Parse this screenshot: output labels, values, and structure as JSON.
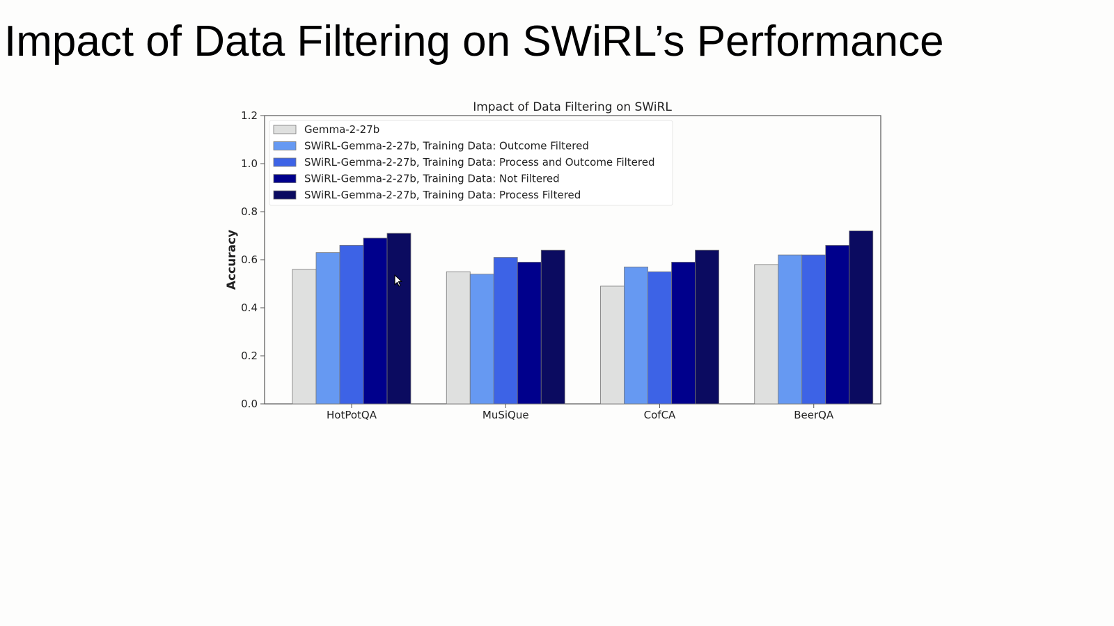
{
  "slide": {
    "title": "Impact of Data Filtering on SWiRL’s Performance"
  },
  "chart_data": {
    "type": "bar",
    "title": "Impact of Data Filtering on SWiRL",
    "xlabel": "",
    "ylabel": "Accuracy",
    "ylim": [
      0,
      1.2
    ],
    "yticks": [
      "0.0",
      "0.2",
      "0.4",
      "0.6",
      "0.8",
      "1.0",
      "1.2"
    ],
    "grid": false,
    "legend_position": "top-left",
    "categories": [
      "HotPotQA",
      "MuSiQue",
      "CofCA",
      "BeerQA"
    ],
    "series": [
      {
        "name": "Gemma-2-27b",
        "color": "#dfe0df",
        "values": [
          0.56,
          0.55,
          0.49,
          0.58
        ]
      },
      {
        "name": "SWiRL-Gemma-2-27b, Training Data: Outcome Filtered",
        "color": "#6699f2",
        "values": [
          0.63,
          0.54,
          0.57,
          0.62
        ]
      },
      {
        "name": "SWiRL-Gemma-2-27b, Training Data: Process and Outcome Filtered",
        "color": "#3d63e6",
        "values": [
          0.66,
          0.61,
          0.55,
          0.62
        ]
      },
      {
        "name": "SWiRL-Gemma-2-27b, Training Data: Not Filtered",
        "color": "#00008c",
        "values": [
          0.69,
          0.59,
          0.59,
          0.66
        ]
      },
      {
        "name": "SWiRL-Gemma-2-27b, Training Data: Process Filtered",
        "color": "#0b0b60",
        "values": [
          0.71,
          0.64,
          0.64,
          0.72
        ]
      }
    ]
  }
}
